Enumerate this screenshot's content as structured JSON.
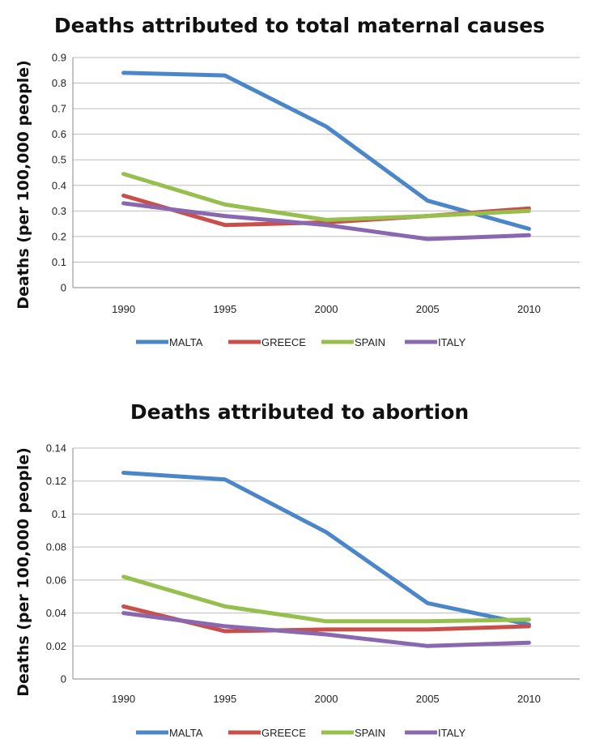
{
  "chart_data": [
    {
      "type": "line",
      "title": "Deaths attributed to total maternal causes",
      "ylabel": "Deaths (per 100,000 people)",
      "xlabel": "",
      "x": [
        "1990",
        "1995",
        "2000",
        "2005",
        "2010"
      ],
      "ylim": [
        0,
        0.9
      ],
      "yticks": [
        "0",
        "0.1",
        "0.2",
        "0.3",
        "0.4",
        "0.5",
        "0.6",
        "0.7",
        "0.8",
        "0.9"
      ],
      "grid": true,
      "legend": "bottom",
      "series": [
        {
          "name": "MALTA",
          "color": "#4a86c8",
          "values": [
            0.84,
            0.83,
            0.63,
            0.34,
            0.23
          ]
        },
        {
          "name": "GREECE",
          "color": "#c9504a",
          "values": [
            0.36,
            0.245,
            0.255,
            0.28,
            0.31
          ]
        },
        {
          "name": "SPAIN",
          "color": "#97bf4d",
          "values": [
            0.445,
            0.325,
            0.265,
            0.28,
            0.3
          ]
        },
        {
          "name": "ITALY",
          "color": "#8a68b0",
          "values": [
            0.33,
            0.28,
            0.245,
            0.19,
            0.205
          ]
        }
      ]
    },
    {
      "type": "line",
      "title": "Deaths attributed to abortion",
      "ylabel": "Deaths (per 100,000 people)",
      "xlabel": "",
      "x": [
        "1990",
        "1995",
        "2000",
        "2005",
        "2010"
      ],
      "ylim": [
        0,
        0.14
      ],
      "yticks": [
        "0",
        "0.02",
        "0.04",
        "0.06",
        "0.08",
        "0.1",
        "0.12",
        "0.14"
      ],
      "grid": true,
      "legend": "bottom",
      "series": [
        {
          "name": "MALTA",
          "color": "#4a86c8",
          "values": [
            0.125,
            0.121,
            0.089,
            0.046,
            0.033
          ]
        },
        {
          "name": "GREECE",
          "color": "#c9504a",
          "values": [
            0.044,
            0.029,
            0.03,
            0.03,
            0.032
          ]
        },
        {
          "name": "SPAIN",
          "color": "#97bf4d",
          "values": [
            0.062,
            0.044,
            0.035,
            0.035,
            0.036
          ]
        },
        {
          "name": "ITALY",
          "color": "#8a68b0",
          "values": [
            0.04,
            0.032,
            0.027,
            0.02,
            0.022
          ]
        }
      ]
    }
  ]
}
